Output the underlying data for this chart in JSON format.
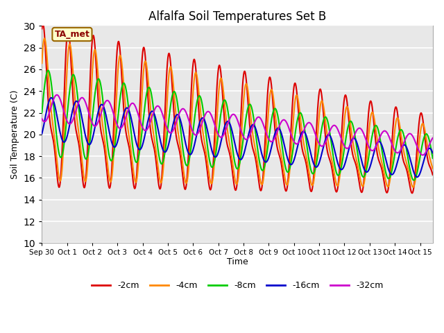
{
  "title": "Alfalfa Soil Temperatures Set B",
  "ylabel": "Soil Temperature (C)",
  "xlabel": "Time",
  "ylim": [
    10,
    30
  ],
  "xlim": [
    0,
    15.5
  ],
  "xtick_labels": [
    "Sep 30",
    "Oct 1",
    "Oct 2",
    "Oct 3",
    "Oct 4",
    "Oct 5",
    "Oct 6",
    "Oct 7",
    "Oct 8",
    "Oct 9",
    "Oct 10",
    "Oct 11",
    "Oct 12",
    "Oct 13",
    "Oct 14",
    "Oct 15"
  ],
  "xtick_positions": [
    0,
    1,
    2,
    3,
    4,
    5,
    6,
    7,
    8,
    9,
    10,
    11,
    12,
    13,
    14,
    15
  ],
  "ytick_positions": [
    10,
    12,
    14,
    16,
    18,
    20,
    22,
    24,
    26,
    28,
    30
  ],
  "annotation_text": "TA_met",
  "bg_color": "#e8e8e8",
  "lines": {
    "-2cm": {
      "color": "#dd0000",
      "lw": 1.5
    },
    "-4cm": {
      "color": "#ff8800",
      "lw": 1.5
    },
    "-8cm": {
      "color": "#00cc00",
      "lw": 1.5
    },
    "-16cm": {
      "color": "#0000cc",
      "lw": 1.5
    },
    "-32cm": {
      "color": "#cc00cc",
      "lw": 1.5
    }
  },
  "legend_order": [
    "-2cm",
    "-4cm",
    "-8cm",
    "-16cm",
    "-32cm"
  ]
}
